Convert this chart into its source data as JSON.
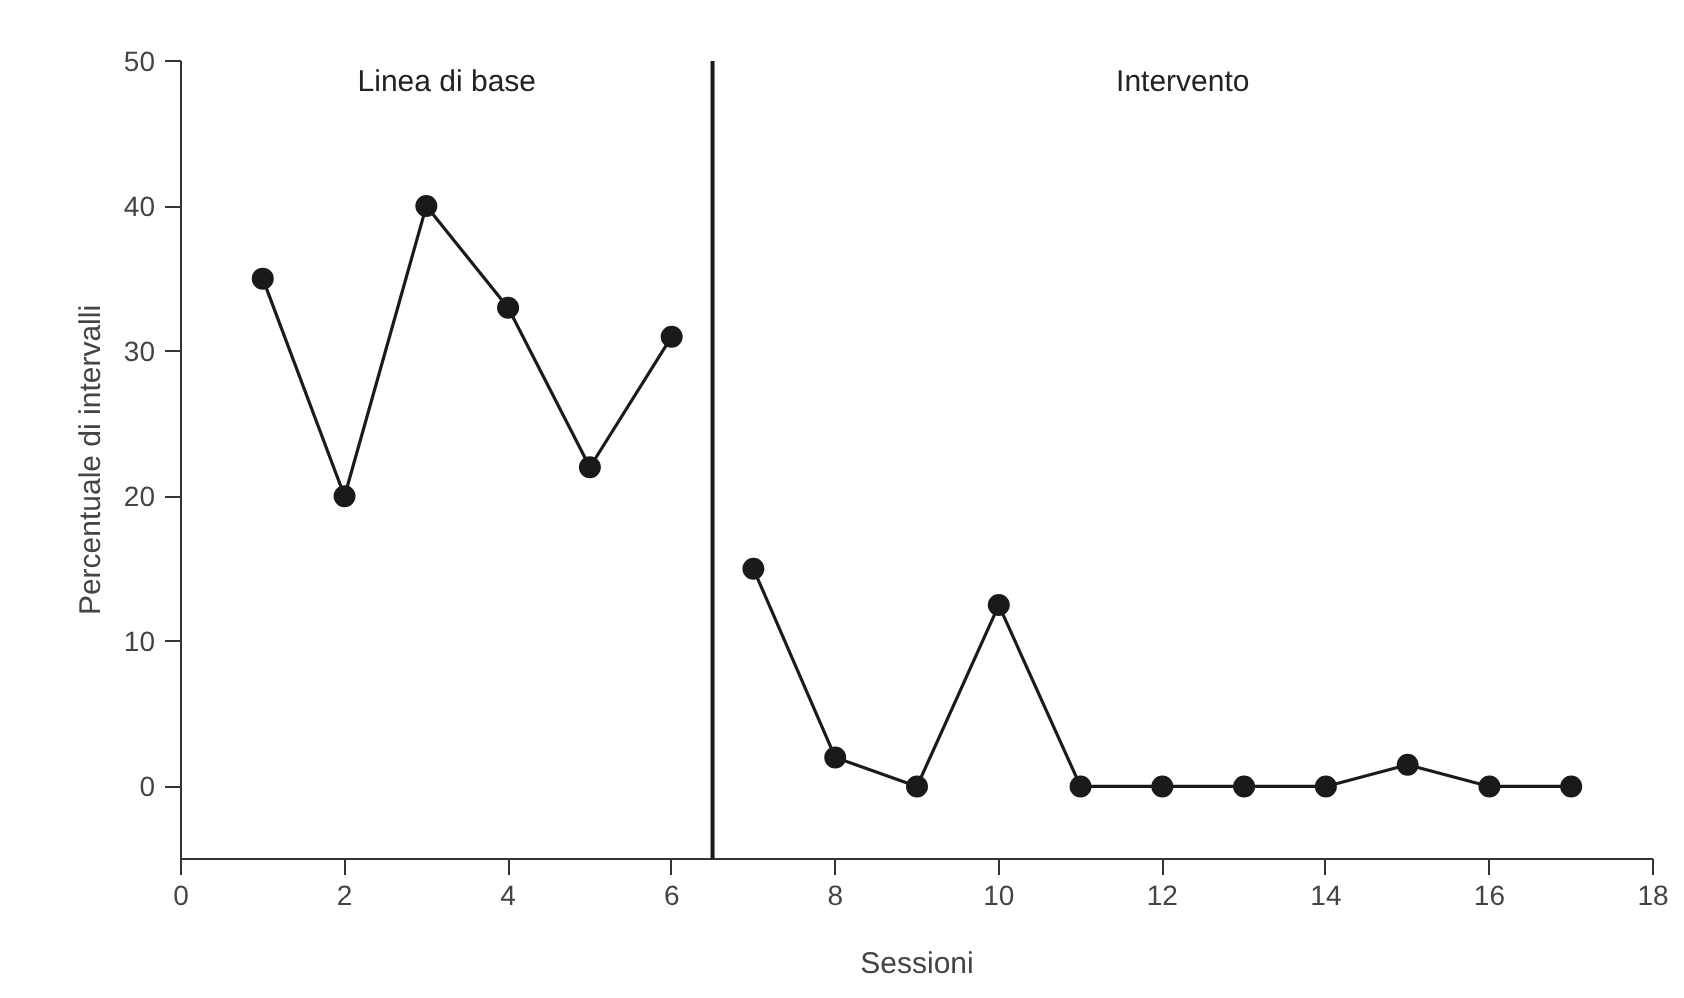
{
  "chart_data": {
    "type": "line",
    "xlabel": "Sessioni",
    "ylabel": "Percentuale di intervalli",
    "xlim": [
      0,
      18
    ],
    "xticks": [
      0,
      2,
      4,
      6,
      8,
      10,
      12,
      14,
      16,
      18
    ],
    "ylim": [
      -5,
      50
    ],
    "yticks": [
      0,
      10,
      20,
      30,
      40,
      50
    ],
    "series": [
      {
        "color": "#1a1a1a",
        "x": [
          1,
          2,
          3,
          4,
          5,
          6
        ],
        "values": [
          35,
          20,
          40,
          33,
          22,
          31
        ]
      },
      {
        "color": "#1a1a1a",
        "x": [
          7,
          8,
          9,
          10,
          11,
          12,
          13,
          14,
          15,
          16,
          17
        ],
        "values": [
          15,
          2,
          0,
          12.5,
          0,
          0,
          0,
          0,
          1.5,
          0,
          0
        ]
      }
    ],
    "ref_lines": [
      {
        "axis": "x",
        "value": 6.5,
        "label": null,
        "color": "#1a1a1a",
        "line_style": "solid"
      }
    ],
    "annotations": [
      "Linea di base",
      "Intervento"
    ],
    "marker": "circle",
    "line_style": "solid",
    "grid": false
  }
}
